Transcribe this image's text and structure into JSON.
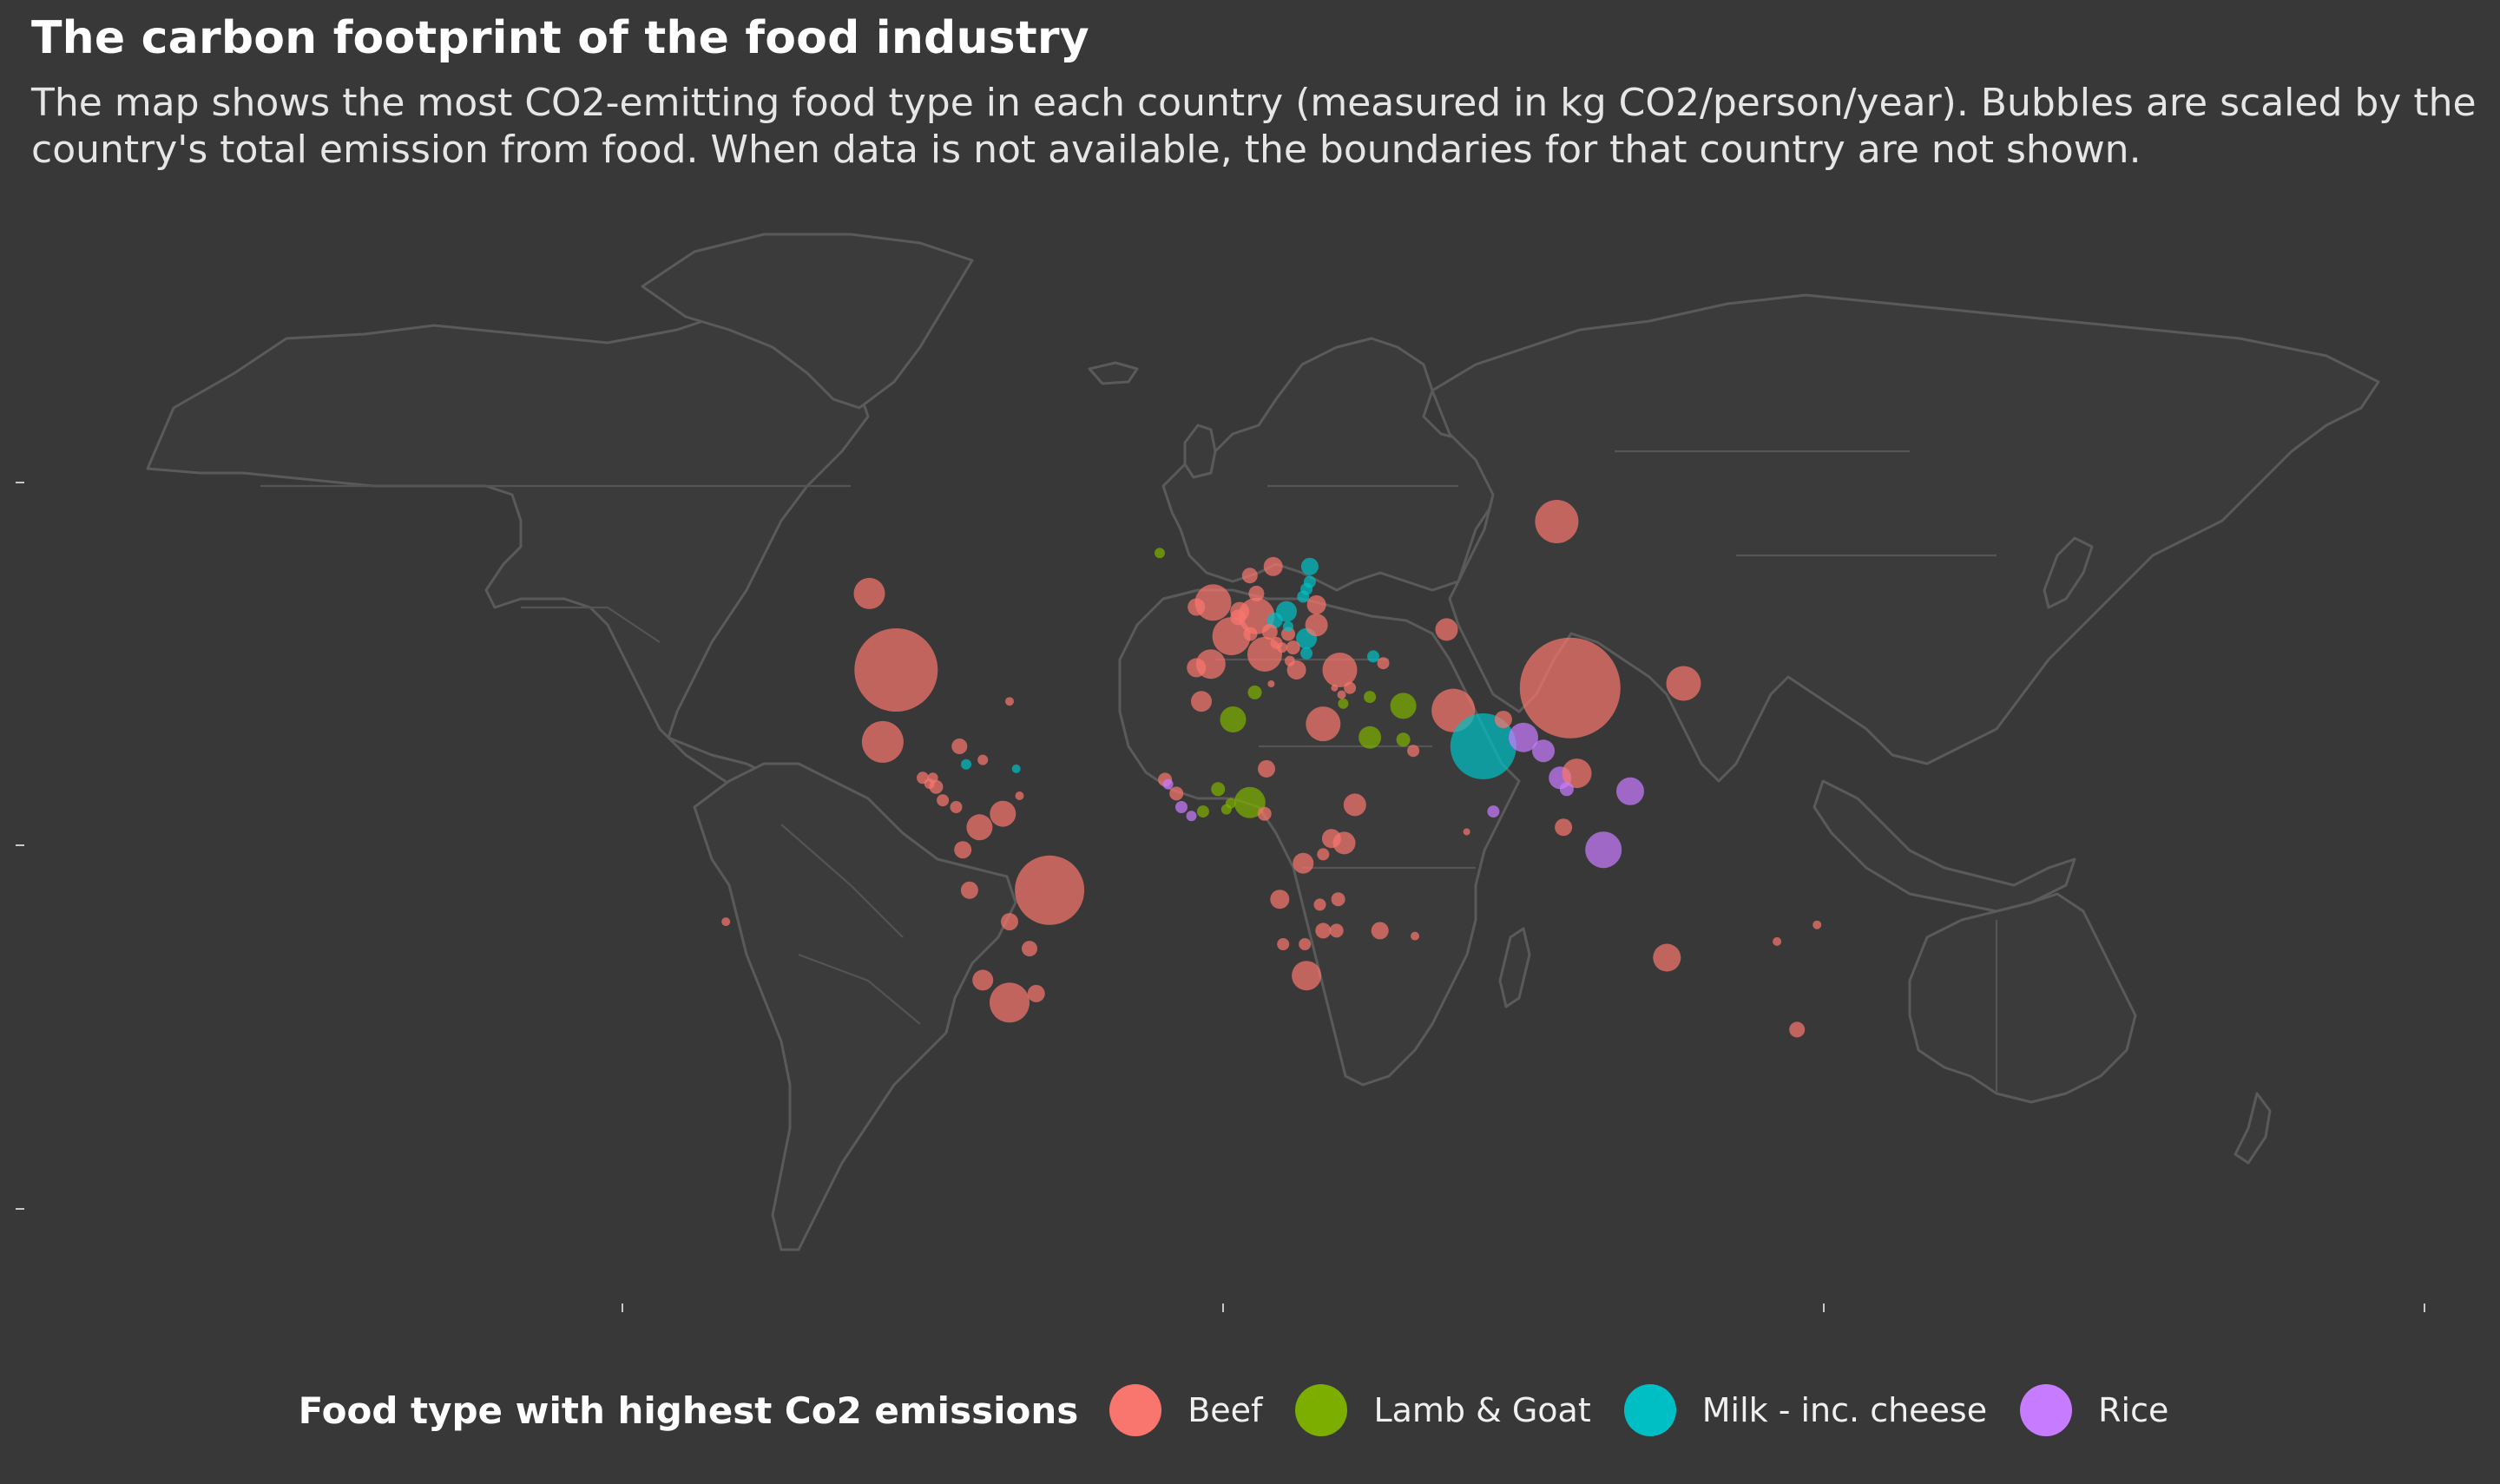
{
  "title": "The carbon footprint of the food industry",
  "subtitle": "The map shows the most CO2-emitting food type in each country (measured in kg CO2/person/year). Bubbles are scaled by the country's total emission from food. When data is not available, the boundaries for that country are not shown.",
  "legend": {
    "title": "Food type with highest Co2 emissions",
    "items": [
      {
        "key": "beef",
        "label": "Beef",
        "color": "#f8766d"
      },
      {
        "key": "lamb",
        "label": "Lamb & Goat",
        "color": "#7cae00"
      },
      {
        "key": "milk",
        "label": "Milk - inc. cheese",
        "color": "#00bfc4"
      },
      {
        "key": "rice",
        "label": "Rice",
        "color": "#c77cff"
      }
    ]
  },
  "map_data": {
    "projection": "plate-carree",
    "bubble_scale": "total emission from food",
    "bubbles": [
      {
        "lon": -98,
        "lat": 39,
        "r": 48,
        "t": "beef"
      },
      {
        "lon": -106,
        "lat": 56,
        "r": 18,
        "t": "beef"
      },
      {
        "lon": -102,
        "lat": 23,
        "r": 24,
        "t": "beef"
      },
      {
        "lon": -52,
        "lat": -10,
        "r": 40,
        "t": "beef"
      },
      {
        "lon": -64,
        "lat": -35,
        "r": 23,
        "t": "beef"
      },
      {
        "lon": -72,
        "lat": -30,
        "r": 12,
        "t": "beef"
      },
      {
        "lon": -73,
        "lat": 4,
        "r": 15,
        "t": "beef"
      },
      {
        "lon": -66,
        "lat": 7,
        "r": 15,
        "t": "beef"
      },
      {
        "lon": -78,
        "lat": -1,
        "r": 10,
        "t": "beef"
      },
      {
        "lon": -76,
        "lat": -10,
        "r": 10,
        "t": "beef"
      },
      {
        "lon": -64,
        "lat": -17,
        "r": 10,
        "t": "beef"
      },
      {
        "lon": -58,
        "lat": -23,
        "r": 9,
        "t": "beef"
      },
      {
        "lon": -56,
        "lat": -33,
        "r": 10,
        "t": "beef"
      },
      {
        "lon": -90,
        "lat": 15,
        "r": 7,
        "t": "beef"
      },
      {
        "lon": -88,
        "lat": 13.7,
        "r": 6,
        "t": "beef"
      },
      {
        "lon": -86,
        "lat": 13,
        "r": 8,
        "t": "beef"
      },
      {
        "lon": -84,
        "lat": 10,
        "r": 7,
        "t": "beef"
      },
      {
        "lon": -80,
        "lat": 8.5,
        "r": 7,
        "t": "beef"
      },
      {
        "lon": -79,
        "lat": 22,
        "r": 9,
        "t": "beef"
      },
      {
        "lon": -72,
        "lat": 19,
        "r": 6,
        "t": "beef"
      },
      {
        "lon": -87,
        "lat": 15,
        "r": 6,
        "t": "beef"
      },
      {
        "lon": -61,
        "lat": 11,
        "r": 5,
        "t": "beef"
      },
      {
        "lon": -64,
        "lat": 32,
        "r": 5,
        "t": "beef"
      },
      {
        "lon": -77,
        "lat": 18,
        "r": 6,
        "t": "milk"
      },
      {
        "lon": -62,
        "lat": 17,
        "r": 5,
        "t": "milk"
      },
      {
        "lon": -149,
        "lat": -17,
        "r": 5,
        "t": "beef"
      },
      {
        "lon": -19,
        "lat": 65,
        "r": 6,
        "t": "lamb"
      },
      {
        "lon": -3,
        "lat": 54,
        "r": 21,
        "t": "beef"
      },
      {
        "lon": -8,
        "lat": 53,
        "r": 10,
        "t": "beef"
      },
      {
        "lon": 2.5,
        "lat": 46.5,
        "r": 22,
        "t": "beef"
      },
      {
        "lon": 10,
        "lat": 51,
        "r": 21,
        "t": "beef"
      },
      {
        "lon": 5,
        "lat": 52,
        "r": 11,
        "t": "beef"
      },
      {
        "lon": 4.5,
        "lat": 50.7,
        "r": 9,
        "t": "beef"
      },
      {
        "lon": 12.5,
        "lat": 42.5,
        "r": 20,
        "t": "beef"
      },
      {
        "lon": -3.7,
        "lat": 40.3,
        "r": 17,
        "t": "beef"
      },
      {
        "lon": -8,
        "lat": 39.5,
        "r": 11,
        "t": "beef"
      },
      {
        "lon": 8,
        "lat": 60,
        "r": 9,
        "t": "beef"
      },
      {
        "lon": 15,
        "lat": 62,
        "r": 11,
        "t": "beef"
      },
      {
        "lon": 10,
        "lat": 56,
        "r": 9,
        "t": "beef"
      },
      {
        "lon": 19,
        "lat": 52,
        "r": 12,
        "t": "milk"
      },
      {
        "lon": 15.5,
        "lat": 50,
        "r": 9,
        "t": "milk"
      },
      {
        "lon": 14,
        "lat": 47.5,
        "r": 9,
        "t": "beef"
      },
      {
        "lon": 8.2,
        "lat": 47,
        "r": 8,
        "t": "beef"
      },
      {
        "lon": 19.5,
        "lat": 47,
        "r": 8,
        "t": "beef"
      },
      {
        "lon": 19.5,
        "lat": 48.7,
        "r": 6,
        "t": "milk"
      },
      {
        "lon": 25,
        "lat": 46,
        "r": 12,
        "t": "milk"
      },
      {
        "lon": 16,
        "lat": 45,
        "r": 7,
        "t": "beef"
      },
      {
        "lon": 21,
        "lat": 44,
        "r": 8,
        "t": "beef"
      },
      {
        "lon": 25,
        "lat": 42.7,
        "r": 7,
        "t": "milk"
      },
      {
        "lon": 22,
        "lat": 39,
        "r": 11,
        "t": "beef"
      },
      {
        "lon": 17.7,
        "lat": 44,
        "r": 6,
        "t": "beef"
      },
      {
        "lon": 20,
        "lat": 41,
        "r": 6,
        "t": "beef"
      },
      {
        "lon": 28,
        "lat": 49,
        "r": 13,
        "t": "beef"
      },
      {
        "lon": 28,
        "lat": 53.5,
        "r": 11,
        "t": "beef"
      },
      {
        "lon": 24,
        "lat": 55.3,
        "r": 7,
        "t": "milk"
      },
      {
        "lon": 25,
        "lat": 57,
        "r": 7,
        "t": "milk"
      },
      {
        "lon": 26,
        "lat": 58.6,
        "r": 7,
        "t": "milk"
      },
      {
        "lon": 26,
        "lat": 62,
        "r": 10,
        "t": "milk"
      },
      {
        "lon": 35,
        "lat": 39,
        "r": 20,
        "t": "beef"
      },
      {
        "lon": 45,
        "lat": 42,
        "r": 7,
        "t": "milk"
      },
      {
        "lon": 48,
        "lat": 40.5,
        "r": 7,
        "t": "beef"
      },
      {
        "lon": 67,
        "lat": 48,
        "r": 13,
        "t": "beef"
      },
      {
        "lon": 100,
        "lat": 72,
        "r": 25,
        "t": "beef"
      },
      {
        "lon": 104,
        "lat": 35,
        "r": 58,
        "t": "beef"
      },
      {
        "lon": 138,
        "lat": 36,
        "r": 20,
        "t": "beef"
      },
      {
        "lon": 69,
        "lat": 30,
        "r": 25,
        "t": "beef"
      },
      {
        "lon": 78,
        "lat": 22,
        "r": 38,
        "t": "milk"
      },
      {
        "lon": 90,
        "lat": 24,
        "r": 17,
        "t": "rice"
      },
      {
        "lon": 96,
        "lat": 21,
        "r": 13,
        "t": "rice"
      },
      {
        "lon": 101,
        "lat": 15,
        "r": 13,
        "t": "rice"
      },
      {
        "lon": 106,
        "lat": 16,
        "r": 17,
        "t": "beef"
      },
      {
        "lon": 103,
        "lat": 12.5,
        "r": 8,
        "t": "rice"
      },
      {
        "lon": 122,
        "lat": 12,
        "r": 16,
        "t": "rice"
      },
      {
        "lon": 114,
        "lat": -1,
        "r": 21,
        "t": "rice"
      },
      {
        "lon": 102,
        "lat": 4,
        "r": 10,
        "t": "beef"
      },
      {
        "lon": 81,
        "lat": 7.5,
        "r": 7,
        "t": "rice"
      },
      {
        "lon": 73,
        "lat": 3,
        "r": 4,
        "t": "beef"
      },
      {
        "lon": 84,
        "lat": 28,
        "r": 10,
        "t": "beef"
      },
      {
        "lon": 54,
        "lat": 31,
        "r": 15,
        "t": "lamb"
      },
      {
        "lon": 44,
        "lat": 24,
        "r": 13,
        "t": "lamb"
      },
      {
        "lon": 44,
        "lat": 33,
        "r": 7,
        "t": "lamb"
      },
      {
        "lon": 38,
        "lat": 35,
        "r": 7,
        "t": "beef"
      },
      {
        "lon": 54,
        "lat": 23.5,
        "r": 8,
        "t": "lamb"
      },
      {
        "lon": 57,
        "lat": 21,
        "r": 7,
        "t": "beef"
      },
      {
        "lon": 36,
        "lat": 31.5,
        "r": 6,
        "t": "lamb"
      },
      {
        "lon": 35.5,
        "lat": 33.5,
        "r": 5,
        "t": "beef"
      },
      {
        "lon": 30,
        "lat": 27,
        "r": 20,
        "t": "beef"
      },
      {
        "lon": 3,
        "lat": 28,
        "r": 15,
        "t": "lamb"
      },
      {
        "lon": 9.5,
        "lat": 34,
        "r": 8,
        "t": "lamb"
      },
      {
        "lon": -6.5,
        "lat": 32,
        "r": 12,
        "t": "beef"
      },
      {
        "lon": 14.4,
        "lat": 35.9,
        "r": 4,
        "t": "beef"
      },
      {
        "lon": 33.4,
        "lat": 35,
        "r": 4,
        "t": "beef"
      },
      {
        "lon": 8,
        "lat": 9.5,
        "r": 18,
        "t": "lamb"
      },
      {
        "lon": -1.5,
        "lat": 12.5,
        "r": 8,
        "t": "lamb"
      },
      {
        "lon": 1,
        "lat": 8,
        "r": 6,
        "t": "lamb"
      },
      {
        "lon": 12.4,
        "lat": 7,
        "r": 8,
        "t": "beef"
      },
      {
        "lon": 2.3,
        "lat": 9.3,
        "r": 6,
        "t": "lamb"
      },
      {
        "lon": 13,
        "lat": 17,
        "r": 10,
        "t": "beef"
      },
      {
        "lon": 39.5,
        "lat": 9,
        "r": 13,
        "t": "beef"
      },
      {
        "lon": 36.3,
        "lat": 0.5,
        "r": 13,
        "t": "beef"
      },
      {
        "lon": 32.5,
        "lat": 1.5,
        "r": 11,
        "t": "beef"
      },
      {
        "lon": 30,
        "lat": -2,
        "r": 7,
        "t": "beef"
      },
      {
        "lon": 24,
        "lat": -4,
        "r": 12,
        "t": "beef"
      },
      {
        "lon": 17,
        "lat": -12,
        "r": 11,
        "t": "beef"
      },
      {
        "lon": 34.5,
        "lat": -12,
        "r": 8,
        "t": "beef"
      },
      {
        "lon": 29,
        "lat": -13.2,
        "r": 7,
        "t": "beef"
      },
      {
        "lon": 34,
        "lat": -19,
        "r": 8,
        "t": "beef"
      },
      {
        "lon": 30,
        "lat": -19,
        "r": 9,
        "t": "beef"
      },
      {
        "lon": 24.5,
        "lat": -22,
        "r": 7,
        "t": "beef"
      },
      {
        "lon": 18,
        "lat": -22,
        "r": 7,
        "t": "beef"
      },
      {
        "lon": 25,
        "lat": -29,
        "r": 17,
        "t": "beef"
      },
      {
        "lon": 47,
        "lat": -19,
        "r": 10,
        "t": "beef"
      },
      {
        "lon": 57.5,
        "lat": -20.2,
        "r": 5,
        "t": "beef"
      },
      {
        "lon": 133,
        "lat": -25,
        "r": 16,
        "t": "beef"
      },
      {
        "lon": 172,
        "lat": -41,
        "r": 9,
        "t": "beef"
      },
      {
        "lon": 178,
        "lat": -17.7,
        "r": 5,
        "t": "beef"
      },
      {
        "lon": 166,
        "lat": -21.4,
        "r": 5,
        "t": "beef"
      },
      {
        "lon": -17.4,
        "lat": 14.6,
        "r": 8,
        "t": "beef"
      },
      {
        "lon": -16.5,
        "lat": 13.6,
        "r": 6,
        "t": "rice"
      },
      {
        "lon": -14,
        "lat": 11.5,
        "r": 8,
        "t": "beef"
      },
      {
        "lon": -12.5,
        "lat": 8.5,
        "r": 7,
        "t": "rice"
      },
      {
        "lon": -9.5,
        "lat": 6.5,
        "r": 6,
        "t": "rice"
      },
      {
        "lon": -6,
        "lat": 7.5,
        "r": 7,
        "t": "lamb"
      }
    ]
  }
}
